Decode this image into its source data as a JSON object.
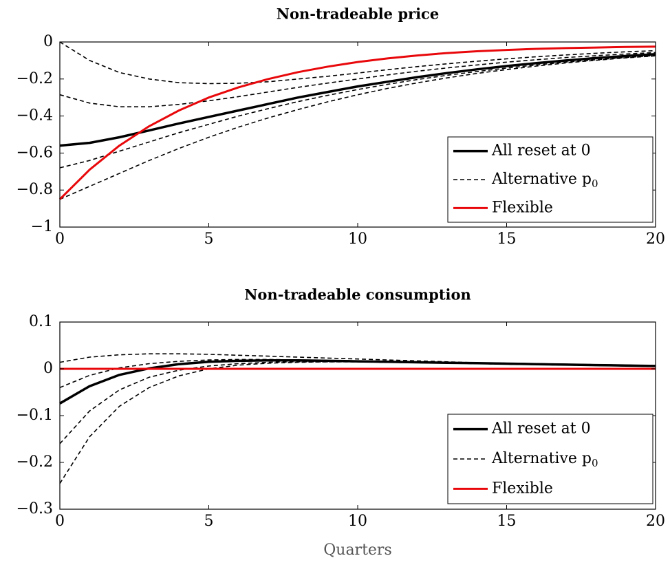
{
  "chart_data": [
    {
      "type": "line",
      "title": "Non-tradeable price",
      "xlabel": "",
      "ylabel": "",
      "xlim": [
        0,
        20
      ],
      "ylim": [
        -1,
        0
      ],
      "xticks": [
        0,
        5,
        10,
        15,
        20
      ],
      "xtick_labels": [
        "0",
        "5",
        "10",
        "15",
        "20"
      ],
      "yticks": [
        -1,
        -0.8,
        -0.6,
        -0.4,
        -0.2,
        0
      ],
      "ytick_labels": [
        "−1",
        "−0.8",
        "−0.6",
        "−0.4",
        "−0.2",
        "0"
      ],
      "legend_position": "bottom-right",
      "legend": [
        {
          "label": "All reset at 0",
          "style": "solid-black"
        },
        {
          "label": "Alternative p",
          "subscript": "0",
          "style": "dashed-black"
        },
        {
          "label": "Flexible",
          "style": "solid-red"
        }
      ],
      "colors": {
        "black": "#000000",
        "red": "#e8080b"
      },
      "x": [
        0,
        1,
        2,
        3,
        4,
        5,
        6,
        7,
        8,
        9,
        10,
        11,
        12,
        13,
        14,
        15,
        16,
        17,
        18,
        19,
        20
      ],
      "series": [
        {
          "legend": 0,
          "values": [
            -0.56,
            -0.545,
            -0.515,
            -0.478,
            -0.44,
            -0.405,
            -0.37,
            -0.335,
            -0.3,
            -0.27,
            -0.24,
            -0.215,
            -0.19,
            -0.168,
            -0.148,
            -0.13,
            -0.114,
            -0.1,
            -0.087,
            -0.076,
            -0.066
          ]
        },
        {
          "legend": 1,
          "values": [
            0,
            -0.1,
            -0.165,
            -0.2,
            -0.22,
            -0.225,
            -0.223,
            -0.215,
            -0.2,
            -0.185,
            -0.168,
            -0.15,
            -0.133,
            -0.118,
            -0.104,
            -0.091,
            -0.08,
            -0.07,
            -0.061,
            -0.053,
            -0.047
          ]
        },
        {
          "legend": 1,
          "values": [
            -0.285,
            -0.33,
            -0.35,
            -0.35,
            -0.337,
            -0.318,
            -0.295,
            -0.27,
            -0.245,
            -0.222,
            -0.2,
            -0.178,
            -0.158,
            -0.14,
            -0.124,
            -0.109,
            -0.096,
            -0.084,
            -0.074,
            -0.065,
            -0.057
          ]
        },
        {
          "legend": 1,
          "values": [
            -0.68,
            -0.64,
            -0.59,
            -0.54,
            -0.49,
            -0.445,
            -0.4,
            -0.36,
            -0.322,
            -0.288,
            -0.257,
            -0.229,
            -0.203,
            -0.18,
            -0.16,
            -0.141,
            -0.124,
            -0.109,
            -0.096,
            -0.084,
            -0.073
          ]
        },
        {
          "legend": 1,
          "values": [
            -0.85,
            -0.78,
            -0.71,
            -0.64,
            -0.575,
            -0.515,
            -0.46,
            -0.41,
            -0.365,
            -0.323,
            -0.285,
            -0.251,
            -0.221,
            -0.194,
            -0.17,
            -0.149,
            -0.13,
            -0.113,
            -0.099,
            -0.086,
            -0.075
          ]
        },
        {
          "legend": 2,
          "values": [
            -0.85,
            -0.69,
            -0.56,
            -0.455,
            -0.37,
            -0.3,
            -0.245,
            -0.2,
            -0.163,
            -0.133,
            -0.108,
            -0.089,
            -0.073,
            -0.06,
            -0.05,
            -0.043,
            -0.037,
            -0.033,
            -0.03,
            -0.027,
            -0.025
          ]
        }
      ]
    },
    {
      "type": "line",
      "title": "Non-tradeable consumption",
      "xlabel": "Quarters",
      "ylabel": "",
      "xlim": [
        0,
        20
      ],
      "ylim": [
        -0.3,
        0.1
      ],
      "xticks": [
        0,
        5,
        10,
        15,
        20
      ],
      "xtick_labels": [
        "0",
        "5",
        "10",
        "15",
        "20"
      ],
      "yticks": [
        -0.3,
        -0.2,
        -0.1,
        0,
        0.1
      ],
      "ytick_labels": [
        "−0.3",
        "−0.2",
        "−0.1",
        "0",
        "0.1"
      ],
      "legend_position": "bottom-right",
      "legend": [
        {
          "label": "All reset at 0",
          "style": "solid-black"
        },
        {
          "label": "Alternative p",
          "subscript": "0",
          "style": "dashed-black"
        },
        {
          "label": "Flexible",
          "style": "solid-red"
        }
      ],
      "colors": {
        "black": "#000000",
        "red": "#e8080b"
      },
      "x": [
        0,
        1,
        2,
        3,
        4,
        5,
        6,
        7,
        8,
        9,
        10,
        11,
        12,
        13,
        14,
        15,
        16,
        17,
        18,
        19,
        20
      ],
      "series": [
        {
          "legend": 0,
          "values": [
            -0.074,
            -0.037,
            -0.013,
            0.001,
            0.01,
            0.015,
            0.017,
            0.018,
            0.018,
            0.017,
            0.016,
            0.015,
            0.014,
            0.013,
            0.012,
            0.011,
            0.01,
            0.009,
            0.008,
            0.007,
            0.006
          ]
        },
        {
          "legend": 1,
          "values": [
            0.014,
            0.025,
            0.03,
            0.032,
            0.032,
            0.031,
            0.029,
            0.027,
            0.025,
            0.023,
            0.021,
            0.019,
            0.017,
            0.015,
            0.013,
            0.012,
            0.011,
            0.01,
            0.009,
            0.008,
            0.007
          ]
        },
        {
          "legend": 1,
          "values": [
            -0.04,
            -0.014,
            0.002,
            0.011,
            0.016,
            0.019,
            0.02,
            0.02,
            0.019,
            0.018,
            0.017,
            0.016,
            0.015,
            0.014,
            0.013,
            0.012,
            0.011,
            0.01,
            0.009,
            0.008,
            0.007
          ]
        },
        {
          "legend": 1,
          "values": [
            -0.16,
            -0.09,
            -0.045,
            -0.018,
            -0.003,
            0.006,
            0.011,
            0.014,
            0.015,
            0.015,
            0.015,
            0.014,
            0.013,
            0.012,
            0.011,
            0.01,
            0.009,
            0.008,
            0.007,
            0.006,
            0.005
          ]
        },
        {
          "legend": 1,
          "values": [
            -0.245,
            -0.145,
            -0.08,
            -0.04,
            -0.015,
            0.0,
            0.008,
            0.012,
            0.014,
            0.015,
            0.015,
            0.014,
            0.013,
            0.012,
            0.011,
            0.01,
            0.009,
            0.008,
            0.007,
            0.006,
            0.005
          ]
        },
        {
          "legend": 2,
          "values": [
            0,
            0,
            0,
            0,
            0,
            0,
            0,
            0,
            0,
            0,
            0,
            0,
            0,
            0,
            0,
            0,
            0,
            0,
            0,
            0,
            0
          ]
        }
      ]
    }
  ]
}
